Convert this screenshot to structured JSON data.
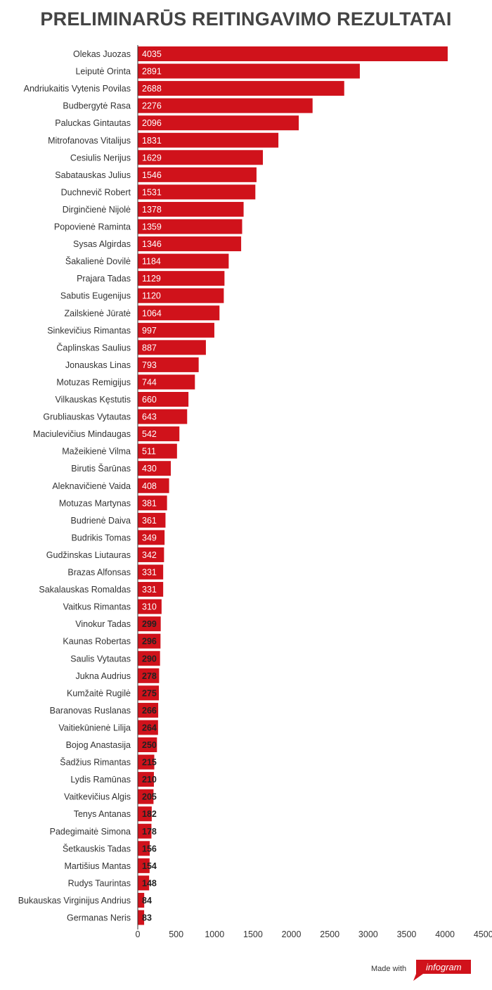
{
  "title": "PRELIMINARŪS REITINGAVIMO REZULTATAI",
  "footer": {
    "made_with": "Made with",
    "brand": "infogram"
  },
  "colors": {
    "bar": "#d0121b",
    "label_inside": "#ffffff",
    "label_outside": "#222222",
    "axis": "#333333"
  },
  "chart_data": {
    "type": "bar",
    "orientation": "horizontal",
    "title": "PRELIMINARŪS REITINGAVIMO REZULTATAI",
    "xlabel": "",
    "ylabel": "",
    "xlim": [
      0,
      4500
    ],
    "ticks": [
      0,
      500,
      1000,
      1500,
      2000,
      2500,
      3000,
      3500,
      4000,
      4500
    ],
    "tick_labels": [
      "0",
      "500",
      "1000",
      "1500",
      "2000",
      "2500",
      "3000",
      "3500",
      "4000",
      "4500"
    ],
    "grid": false,
    "categories": [
      "Olekas Juozas",
      "Leiputė Orinta",
      "Andriukaitis Vytenis Povilas",
      "Budbergytė Rasa",
      "Paluckas Gintautas",
      "Mitrofanovas Vitalijus",
      "Cesiulis Nerijus",
      "Sabatauskas Julius",
      "Duchnevič Robert",
      "Dirginčienė Nijolė",
      "Popovienė Raminta",
      "Sysas Algirdas",
      "Šakalienė Dovilė",
      "Prajara Tadas",
      "Sabutis Eugenijus",
      "Zailskienė Jūratė",
      "Sinkevičius Rimantas",
      "Čaplinskas Saulius",
      "Jonauskas Linas",
      "Motuzas Remigijus",
      "Vilkauskas Kęstutis",
      "Grubliauskas Vytautas",
      "Maciulevičius Mindaugas",
      "Mažeikienė Vilma",
      "Birutis Šarūnas",
      "Aleknavičienė Vaida",
      "Motuzas Martynas",
      "Budrienė Daiva",
      "Budrikis Tomas",
      "Gudžinskas Liutauras",
      "Brazas Alfonsas",
      "Sakalauskas Romaldas",
      "Vaitkus Rimantas",
      "Vinokur Tadas",
      "Kaunas Robertas",
      "Saulis Vytautas",
      "Jukna Audrius",
      "Kumžaitė Rugilė",
      "Baranovas Ruslanas",
      "Vaitiekūnienė Lilija",
      "Bojog Anastasija",
      "Šadžius Rimantas",
      "Lydis Ramūnas",
      "Vaitkevičius Algis",
      "Tenys Antanas",
      "Padegimaitė Simona",
      "Šetkauskis Tadas",
      "Martišius Mantas",
      "Rudys Taurintas",
      "Bukauskas Virginijus Andrius",
      "Germanas Neris"
    ],
    "values": [
      4035,
      2891,
      2688,
      2276,
      2096,
      1831,
      1629,
      1546,
      1531,
      1378,
      1359,
      1346,
      1184,
      1129,
      1120,
      1064,
      997,
      887,
      793,
      744,
      660,
      643,
      542,
      511,
      430,
      408,
      381,
      361,
      349,
      342,
      331,
      331,
      310,
      299,
      296,
      290,
      278,
      275,
      266,
      264,
      250,
      215,
      210,
      205,
      182,
      178,
      156,
      154,
      148,
      84,
      83
    ]
  }
}
